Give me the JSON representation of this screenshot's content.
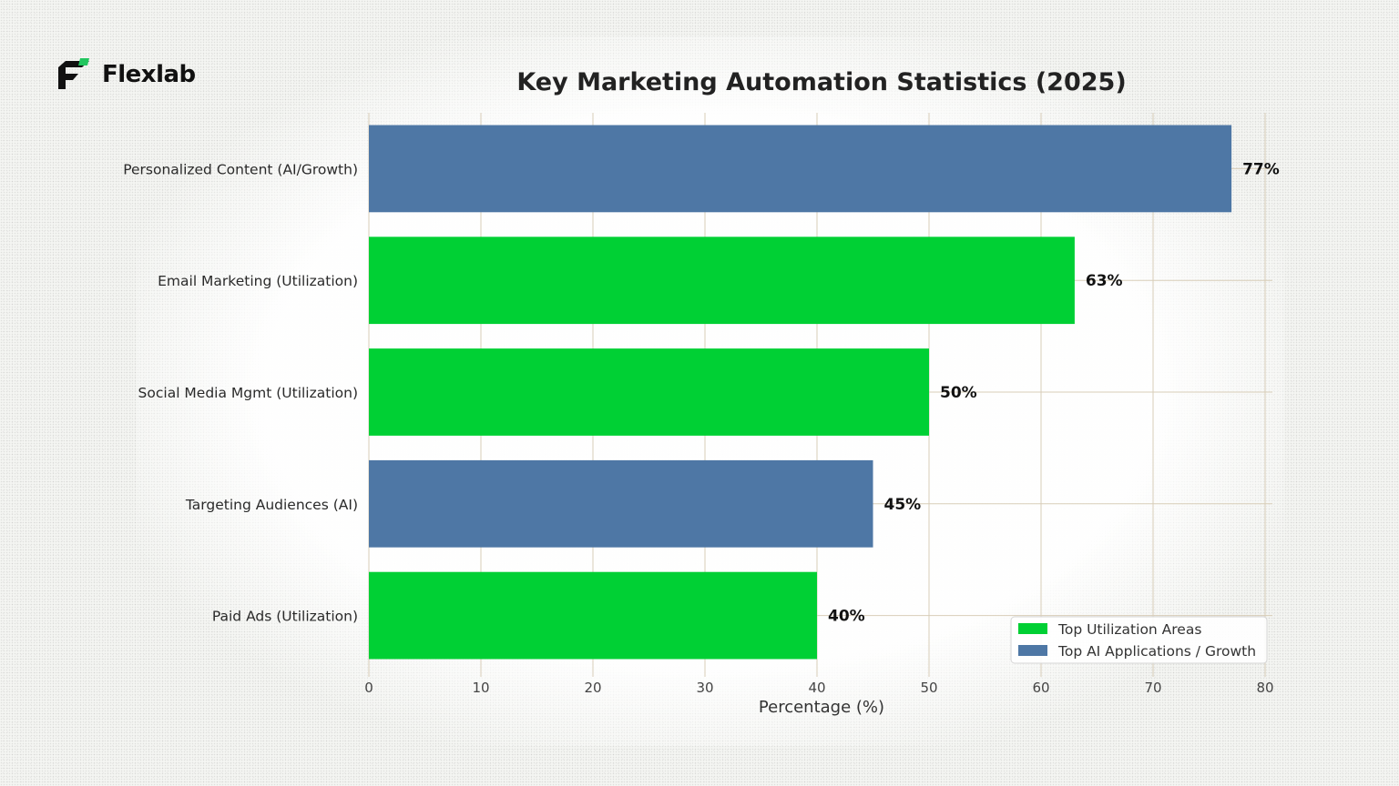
{
  "brand": {
    "name": "Flexlab",
    "icon": "flexlab-logo-icon"
  },
  "chart_data": {
    "type": "bar",
    "orientation": "horizontal",
    "title": "Key Marketing Automation Statistics (2025)",
    "xlabel": "Percentage (%)",
    "ylabel": "",
    "xlim": [
      0,
      80
    ],
    "xticks": [
      0,
      10,
      20,
      30,
      40,
      50,
      60,
      70,
      80
    ],
    "grid": true,
    "legend_position": "bottom-right",
    "categories": [
      "Personalized Content (AI/Growth)",
      "Email Marketing (Utilization)",
      "Social Media Mgmt (Utilization)",
      "Targeting Audiences (AI)",
      "Paid Ads (Utilization)"
    ],
    "values": [
      77,
      63,
      50,
      45,
      40
    ],
    "data_labels": [
      "77%",
      "63%",
      "50%",
      "45%",
      "40%"
    ],
    "bar_series": [
      1,
      0,
      0,
      1,
      0
    ],
    "series": [
      {
        "name": "Top Utilization Areas",
        "color": "#00d034"
      },
      {
        "name": "Top AI Applications / Growth",
        "color": "#4e77a5"
      }
    ]
  }
}
